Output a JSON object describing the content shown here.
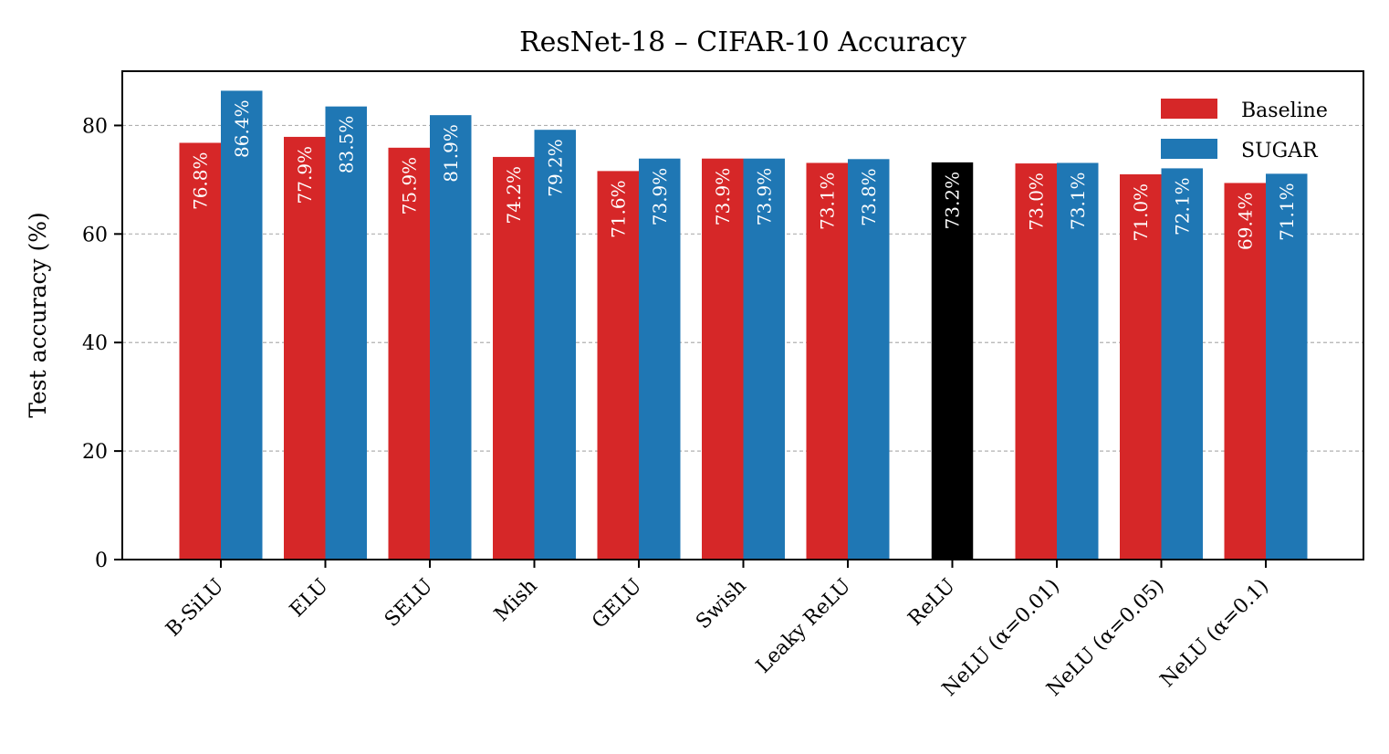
{
  "chart_data": {
    "type": "bar",
    "title": "ResNet-18 – CIFAR-10 Accuracy",
    "xlabel": "",
    "ylabel": "Test accuracy (%)",
    "ylim": [
      0,
      90
    ],
    "yticks": [
      0,
      20,
      40,
      60,
      80
    ],
    "grid": "y-dashed",
    "legend_position": "top-right",
    "categories": [
      "B-SiLU",
      "ELU",
      "SELU",
      "Mish",
      "GELU",
      "Swish",
      "Leaky ReLU",
      "ReLU",
      "NeLU (α=0.01)",
      "NeLU (α=0.05)",
      "NeLU (α=0.1)"
    ],
    "series": [
      {
        "name": "Baseline",
        "color": "#d62728",
        "values": [
          76.8,
          77.9,
          75.9,
          74.2,
          71.6,
          73.9,
          73.1,
          null,
          73.0,
          71.0,
          69.4
        ],
        "labels": [
          "76.8%",
          "77.9%",
          "75.9%",
          "74.2%",
          "71.6%",
          "73.9%",
          "73.1%",
          null,
          "73.0%",
          "71.0%",
          "69.4%"
        ]
      },
      {
        "name": "SUGAR",
        "color": "#1f77b4",
        "values": [
          86.4,
          83.5,
          81.9,
          79.2,
          73.9,
          73.9,
          73.8,
          null,
          73.1,
          72.1,
          71.1
        ],
        "labels": [
          "86.4%",
          "83.5%",
          "81.9%",
          "79.2%",
          "73.9%",
          "73.9%",
          "73.8%",
          null,
          "73.1%",
          "72.1%",
          "71.1%"
        ]
      }
    ],
    "reference": {
      "category": "ReLU",
      "value": 73.2,
      "label": "73.2%",
      "color": "#000000"
    }
  }
}
